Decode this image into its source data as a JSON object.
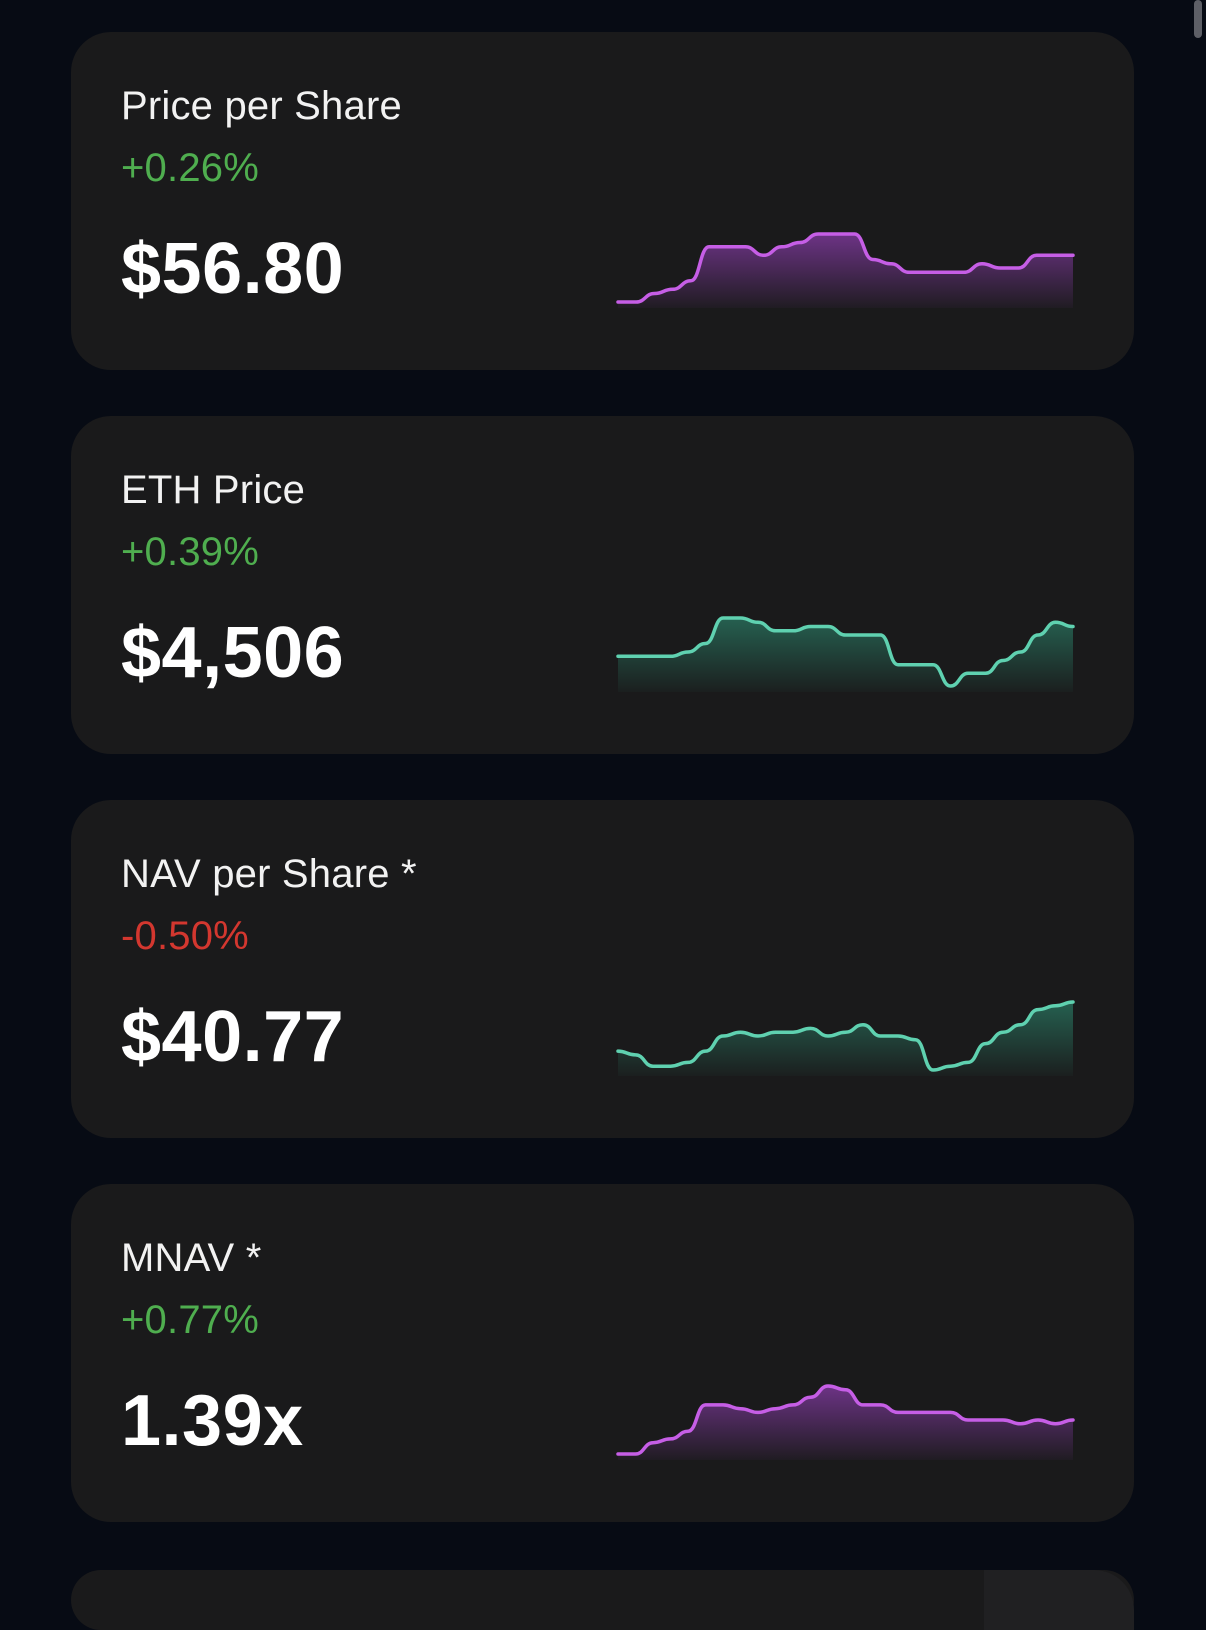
{
  "cards": [
    {
      "title": "Price per Share",
      "change": "+0.26%",
      "value": "$56.80",
      "change_color": "#4fae4f",
      "line_color": "#c65ee6",
      "fill_color": "#b048dc",
      "spark": [
        1,
        1,
        3,
        4,
        6,
        14,
        14,
        14,
        12,
        14,
        15,
        17,
        17,
        17,
        11,
        10,
        8,
        8,
        8,
        8,
        10,
        9,
        9,
        12,
        12,
        12
      ]
    },
    {
      "title": "ETH Price",
      "change": "+0.39%",
      "value": "$4,506",
      "change_color": "#4fae4f",
      "line_color": "#5fd1b0",
      "fill_color": "#2f9a7c",
      "spark": [
        8,
        8,
        8,
        8,
        9,
        11,
        17,
        17,
        16,
        14,
        14,
        15,
        15,
        13,
        13,
        13,
        6,
        6,
        6,
        1,
        4,
        4,
        7,
        9,
        13,
        16,
        15
      ]
    },
    {
      "title": "NAV per Share *",
      "change": "-0.50%",
      "value": "$40.77",
      "change_color": "#d3372f",
      "line_color": "#5fd1b0",
      "fill_color": "#2f9a7c",
      "spark": [
        8,
        7,
        4,
        4,
        5,
        8,
        12,
        13,
        12,
        13,
        13,
        14,
        12,
        13,
        15,
        12,
        12,
        11,
        3,
        4,
        5,
        10,
        13,
        15,
        19,
        20,
        21
      ]
    },
    {
      "title": "MNAV *",
      "change": "+0.77%",
      "value": "1.39x",
      "change_color": "#4fae4f",
      "line_color": "#c65ee6",
      "fill_color": "#b048dc",
      "spark": [
        1,
        1,
        4,
        5,
        7,
        14,
        14,
        13,
        12,
        13,
        14,
        16,
        19,
        18,
        14,
        14,
        12,
        12,
        12,
        12,
        10,
        10,
        10,
        9,
        10,
        9,
        10
      ]
    }
  ]
}
